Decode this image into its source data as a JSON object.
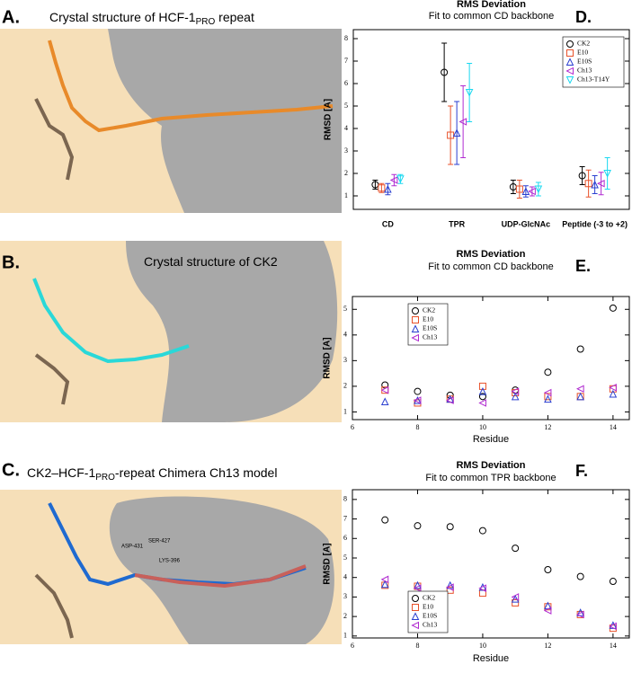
{
  "panels": [
    {
      "letter": "A.",
      "title": [
        "Crystal structure of HCF-1",
        "PRO",
        " repeat"
      ]
    },
    {
      "letter": "B.",
      "title": [
        "Crystal structure of CK2"
      ]
    },
    {
      "letter": "C.",
      "title": [
        "CK2–HCF-1",
        "PRO",
        "-repeat Chimera Ch13 model"
      ],
      "labels": [
        "ASP-431",
        "SER-427",
        "LYS-396"
      ]
    }
  ],
  "chart_data": [
    {
      "type": "errorbar",
      "letter": "D.",
      "title": "RMS Deviation",
      "subtitle": "Fit to common CD backbone",
      "ylabel": "RMSD [A]",
      "categories": [
        "CD",
        "TPR",
        "UDP-GlcNAc",
        "Peptide (-3 to +2)"
      ],
      "ylim": [
        0.4,
        8.4
      ],
      "yticks": [
        1,
        2,
        3,
        4,
        5,
        6,
        7,
        8
      ],
      "legend": "upper right",
      "series": [
        {
          "name": "CK2",
          "color": "#000000",
          "marker": "circle",
          "values": [
            1.5,
            6.5,
            1.4,
            1.9
          ],
          "errors": [
            0.2,
            1.3,
            0.3,
            0.4
          ]
        },
        {
          "name": "E10",
          "color": "#e8512a",
          "marker": "square",
          "values": [
            1.35,
            3.7,
            1.3,
            1.55
          ],
          "errors": [
            0.2,
            1.3,
            0.4,
            0.6
          ]
        },
        {
          "name": "E10S",
          "color": "#2a3fd0",
          "marker": "triangle-up",
          "values": [
            1.3,
            3.8,
            1.2,
            1.5
          ],
          "errors": [
            0.25,
            1.4,
            0.25,
            0.4
          ]
        },
        {
          "name": "Ch13",
          "color": "#b02ad0",
          "marker": "triangle-left",
          "values": [
            1.7,
            4.3,
            1.2,
            1.55
          ],
          "errors": [
            0.25,
            1.6,
            0.2,
            0.5
          ]
        },
        {
          "name": "Ch13-T14Y",
          "color": "#19d8f0",
          "marker": "triangle-down",
          "values": [
            1.75,
            5.6,
            1.3,
            2.0
          ],
          "errors": [
            0.2,
            1.3,
            0.3,
            0.7
          ]
        }
      ]
    },
    {
      "type": "scatter",
      "letter": "E.",
      "title": "RMS Deviation",
      "subtitle": "Fit to common CD backbone",
      "ylabel": "RMSD [A]",
      "xlabel": "Residue",
      "x": [
        7,
        8,
        9,
        10,
        11,
        12,
        13,
        14
      ],
      "xlim": [
        6,
        14.5
      ],
      "xticks": [
        6,
        8,
        10,
        12,
        14
      ],
      "ylim": [
        0.7,
        5.5
      ],
      "yticks": [
        1,
        2,
        3,
        4,
        5
      ],
      "legend": "upper left",
      "series": [
        {
          "name": "CK2",
          "color": "#000000",
          "marker": "circle",
          "values": [
            2.05,
            1.8,
            1.65,
            1.6,
            1.85,
            2.55,
            3.45,
            5.05
          ]
        },
        {
          "name": "E10",
          "color": "#e8512a",
          "marker": "square",
          "values": [
            1.85,
            1.35,
            1.5,
            2.0,
            1.75,
            1.6,
            1.6,
            1.9
          ]
        },
        {
          "name": "E10S",
          "color": "#2a3fd0",
          "marker": "triangle-up",
          "values": [
            1.4,
            1.45,
            1.5,
            1.8,
            1.6,
            1.5,
            1.6,
            1.7
          ]
        },
        {
          "name": "Ch13",
          "color": "#b02ad0",
          "marker": "triangle-left",
          "values": [
            1.85,
            1.45,
            1.45,
            1.35,
            1.8,
            1.75,
            1.9,
            1.95
          ]
        }
      ]
    },
    {
      "type": "scatter",
      "letter": "F.",
      "title": "RMS Deviation",
      "subtitle": "Fit to common TPR backbone",
      "ylabel": "RMSD [A]",
      "xlabel": "Residue",
      "x": [
        7,
        8,
        9,
        10,
        11,
        12,
        13,
        14
      ],
      "xlim": [
        6,
        14.5
      ],
      "xticks": [
        6,
        8,
        10,
        12,
        14
      ],
      "ylim": [
        0.9,
        8.5
      ],
      "yticks": [
        1,
        2,
        3,
        4,
        5,
        6,
        7,
        8
      ],
      "legend": "lower left",
      "series": [
        {
          "name": "CK2",
          "color": "#000000",
          "marker": "circle",
          "values": [
            6.95,
            6.65,
            6.6,
            6.4,
            5.5,
            4.4,
            4.05,
            3.8
          ]
        },
        {
          "name": "E10",
          "color": "#e8512a",
          "marker": "square",
          "values": [
            3.6,
            3.55,
            3.35,
            3.2,
            2.7,
            2.5,
            2.1,
            1.4
          ]
        },
        {
          "name": "E10S",
          "color": "#2a3fd0",
          "marker": "triangle-up",
          "values": [
            3.65,
            3.6,
            3.6,
            3.5,
            2.9,
            2.55,
            2.2,
            1.55
          ]
        },
        {
          "name": "Ch13",
          "color": "#b02ad0",
          "marker": "triangle-left",
          "values": [
            3.9,
            3.45,
            3.5,
            3.45,
            3.0,
            2.3,
            2.1,
            1.5
          ]
        }
      ]
    }
  ]
}
